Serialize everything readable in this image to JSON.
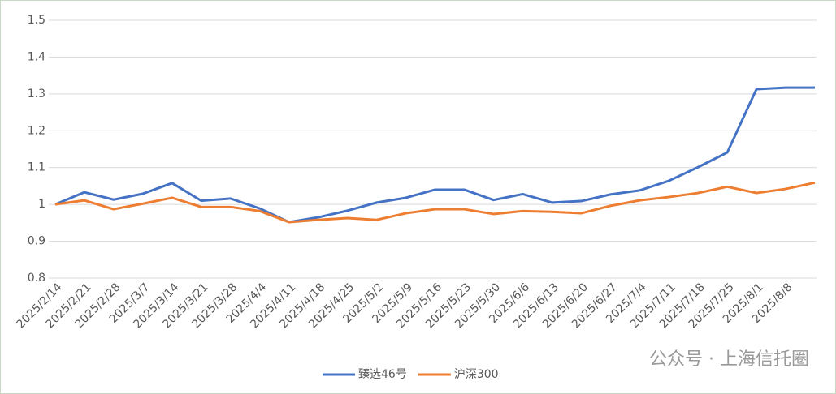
{
  "chart_data": {
    "type": "line",
    "categories": [
      "2025/2/14",
      "2025/2/21",
      "2025/2/28",
      "2025/3/7",
      "2025/3/14",
      "2025/3/21",
      "2025/3/28",
      "2025/4/4",
      "2025/4/11",
      "2025/4/18",
      "2025/4/25",
      "2025/5/2",
      "2025/5/9",
      "2025/5/16",
      "2025/5/23",
      "2025/5/30",
      "2025/6/6",
      "2025/6/13",
      "2025/6/20",
      "2025/6/27",
      "2025/7/4",
      "2025/7/11",
      "2025/7/18",
      "2025/7/25",
      "2025/8/1",
      "2025/8/8",
      null
    ],
    "series": [
      {
        "name": "臻选46号",
        "color": "#4472c4",
        "values": [
          1.0,
          1.033,
          1.013,
          1.029,
          1.058,
          1.01,
          1.016,
          0.989,
          0.952,
          0.965,
          0.983,
          1.005,
          1.018,
          1.04,
          1.04,
          1.012,
          1.028,
          1.005,
          1.009,
          1.027,
          1.038,
          1.064,
          1.101,
          1.141,
          1.313,
          1.317,
          1.317
        ]
      },
      {
        "name": "沪深300",
        "color": "#ed7d31",
        "values": [
          1.0,
          1.011,
          0.987,
          1.002,
          1.018,
          0.993,
          0.993,
          0.982,
          0.952,
          0.958,
          0.963,
          0.958,
          0.976,
          0.987,
          0.987,
          0.974,
          0.982,
          0.98,
          0.976,
          0.996,
          1.011,
          1.02,
          1.031,
          1.048,
          1.031,
          1.042,
          1.059
        ]
      }
    ],
    "ylim": [
      0.8,
      1.5
    ],
    "yticks": [
      0.8,
      0.9,
      1,
      1.1,
      1.2,
      1.3,
      1.4,
      1.5
    ],
    "grid": true,
    "legend": "bottom",
    "watermark": "公众号 · 上海信托圈"
  }
}
